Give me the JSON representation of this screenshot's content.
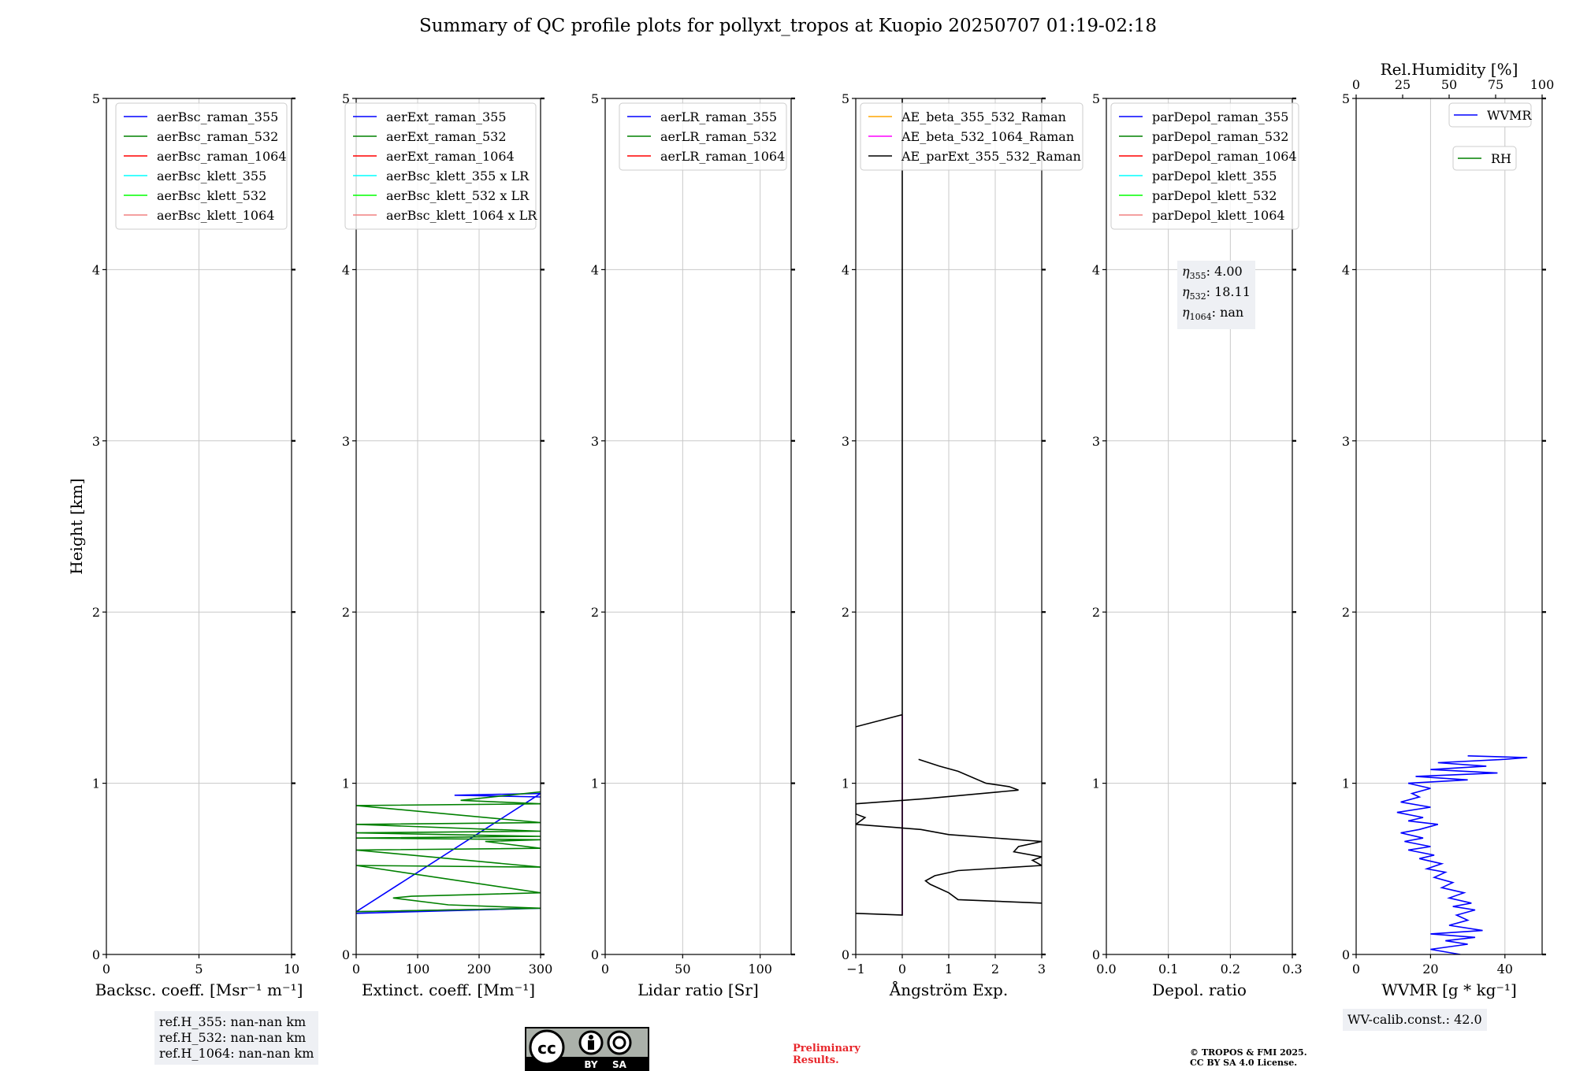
{
  "title": "Summary of QC profile plots for pollyxt_tropos at Kuopio 20250707 01:19-02:18",
  "ref_heights": [
    "ref.H_355: nan-nan km",
    "ref.H_532: nan-nan km",
    "ref.H_1064: nan-nan km"
  ],
  "eta_box": [
    {
      "sym": "η",
      "sub": "355",
      "text": ": 4.00"
    },
    {
      "sym": "η",
      "sub": "532",
      "text": ": 18.11"
    },
    {
      "sym": "η",
      "sub": "1064",
      "text": ": nan"
    }
  ],
  "wv_calib": "WV-calib.const.: 42.0",
  "preliminary": [
    "Preliminary",
    "Results."
  ],
  "copyright": [
    "© TROPOS & FMI 2025.",
    "CC BY SA 4.0 License."
  ],
  "license_badge": {
    "icon": "cc-by-sa-badge",
    "labels": [
      "BY",
      "SA"
    ]
  },
  "colors": {
    "blue": "#0000ff",
    "green": "#008000",
    "red": "#ff0000",
    "cyan": "#00ffff",
    "lime": "#00ff00",
    "pink": "#f08080",
    "orange": "#ffa500",
    "magenta": "#ff00ff",
    "black": "#000000"
  },
  "chart_data": [
    {
      "type": "line",
      "xlabel": "Backsc. coeff. [Msr⁻¹ m⁻¹]",
      "ylabel": "Height [km]",
      "xlim": [
        0,
        10
      ],
      "ylim": [
        0,
        5
      ],
      "xticks": [
        0,
        5,
        10
      ],
      "yticks": [
        0,
        1,
        2,
        3,
        4,
        5
      ],
      "grid": true,
      "legend": "top-right",
      "series": [
        {
          "name": "aerBsc_raman_355",
          "color": "#0000ff",
          "points": []
        },
        {
          "name": "aerBsc_raman_532",
          "color": "#008000",
          "points": []
        },
        {
          "name": "aerBsc_raman_1064",
          "color": "#ff0000",
          "points": []
        },
        {
          "name": "aerBsc_klett_355",
          "color": "#00ffff",
          "points": []
        },
        {
          "name": "aerBsc_klett_532",
          "color": "#00ff00",
          "points": []
        },
        {
          "name": "aerBsc_klett_1064",
          "color": "#f08080",
          "points": []
        }
      ]
    },
    {
      "type": "line",
      "xlabel": "Extinct. coeff. [Mm⁻¹]",
      "ylabel": "",
      "xlim": [
        0,
        300
      ],
      "ylim": [
        0,
        5
      ],
      "xticks": [
        0,
        100,
        200,
        300
      ],
      "yticks": [
        0,
        1,
        2,
        3,
        4,
        5
      ],
      "grid": true,
      "legend": "top-right",
      "series": [
        {
          "name": "aerExt_raman_355",
          "color": "#0000ff",
          "points": [
            [
              0,
              0.24
            ],
            [
              200,
              0.26
            ],
            [
              300,
              0.27
            ],
            [
              0,
              0.25
            ],
            [
              300,
              0.94
            ],
            [
              160,
              0.93
            ],
            [
              300,
              0.92
            ]
          ]
        },
        {
          "name": "aerExt_raman_532",
          "color": "#008000",
          "points": [
            [
              0,
              0.25
            ],
            [
              300,
              0.27
            ],
            [
              150,
              0.29
            ],
            [
              60,
              0.33
            ],
            [
              90,
              0.34
            ],
            [
              300,
              0.36
            ],
            [
              0,
              0.52
            ],
            [
              300,
              0.51
            ],
            [
              0,
              0.61
            ],
            [
              300,
              0.62
            ],
            [
              210,
              0.66
            ],
            [
              300,
              0.67
            ],
            [
              0,
              0.68
            ],
            [
              300,
              0.69
            ],
            [
              0,
              0.71
            ],
            [
              300,
              0.72
            ],
            [
              0,
              0.76
            ],
            [
              300,
              0.77
            ],
            [
              0,
              0.87
            ],
            [
              300,
              0.88
            ],
            [
              170,
              0.9
            ],
            [
              300,
              0.95
            ]
          ]
        },
        {
          "name": "aerExt_raman_1064",
          "color": "#ff0000",
          "points": []
        },
        {
          "name": "aerBsc_klett_355 x LR",
          "color": "#00ffff",
          "points": []
        },
        {
          "name": "aerBsc_klett_532 x LR",
          "color": "#00ff00",
          "points": []
        },
        {
          "name": "aerBsc_klett_1064 x LR",
          "color": "#f08080",
          "points": []
        }
      ]
    },
    {
      "type": "line",
      "xlabel": "Lidar ratio [Sr]",
      "ylabel": "",
      "xlim": [
        0,
        120
      ],
      "ylim": [
        0,
        5
      ],
      "xticks": [
        0,
        50,
        100
      ],
      "yticks": [
        0,
        1,
        2,
        3,
        4,
        5
      ],
      "grid": true,
      "legend": "top-right",
      "series": [
        {
          "name": "aerLR_raman_355",
          "color": "#0000ff",
          "points": []
        },
        {
          "name": "aerLR_raman_532",
          "color": "#008000",
          "points": []
        },
        {
          "name": "aerLR_raman_1064",
          "color": "#ff0000",
          "points": []
        }
      ]
    },
    {
      "type": "line",
      "xlabel": "Ångström Exp.",
      "ylabel": "",
      "xlim": [
        -1,
        3
      ],
      "ylim": [
        0,
        5
      ],
      "xticks": [
        -1,
        0,
        1,
        2,
        3
      ],
      "xticklabels": [
        "−1",
        "0",
        "1",
        "2",
        "3"
      ],
      "yticks": [
        0,
        1,
        2,
        3,
        4,
        5
      ],
      "grid": true,
      "legend": "top-left",
      "series": [
        {
          "name": "AE_beta_355_532_Raman",
          "color": "#ffa500",
          "points": []
        },
        {
          "name": "AE_beta_532_1064_Raman",
          "color": "#ff00ff",
          "points": [
            [
              0,
              0.23
            ],
            [
              0,
              1.4
            ]
          ]
        },
        {
          "name": "AE_parExt_355_532_Raman",
          "color": "#000000",
          "points": [
            [
              -1,
              0.24
            ],
            [
              0,
              0.23
            ],
            [
              0,
              1.4
            ],
            [
              -1,
              1.33
            ],
            [
              0,
              1.4
            ],
            [
              0,
              5
            ]
          ]
        },
        {
          "name": "",
          "color": "#000000",
          "points": [
            [
              3,
              0.3
            ],
            [
              1.2,
              0.32
            ],
            [
              1,
              0.36
            ],
            [
              0.6,
              0.41
            ],
            [
              0.5,
              0.43
            ],
            [
              0.7,
              0.46
            ],
            [
              1.2,
              0.49
            ],
            [
              3,
              0.52
            ],
            [
              2.8,
              0.55
            ],
            [
              3,
              0.57
            ],
            [
              2.4,
              0.6
            ],
            [
              2.5,
              0.63
            ],
            [
              3,
              0.66
            ],
            [
              1,
              0.7
            ],
            [
              0.4,
              0.73
            ],
            [
              -1,
              0.76
            ],
            [
              -0.8,
              0.8
            ],
            [
              -1,
              0.82
            ],
            [
              -1,
              0.88
            ],
            [
              0.5,
              0.91
            ],
            [
              2.5,
              0.96
            ],
            [
              2.3,
              0.98
            ],
            [
              1.8,
              1.0
            ],
            [
              1.2,
              1.07
            ],
            [
              0.8,
              1.1
            ],
            [
              0.35,
              1.14
            ]
          ]
        }
      ]
    },
    {
      "type": "line",
      "xlabel": "Depol. ratio",
      "ylabel": "",
      "xlim": [
        0,
        0.3
      ],
      "ylim": [
        0,
        5
      ],
      "xticks": [
        0,
        0.1,
        0.2,
        0.3
      ],
      "xticklabels": [
        "0.0",
        "0.1",
        "0.2",
        "0.3"
      ],
      "yticks": [
        0,
        1,
        2,
        3,
        4,
        5
      ],
      "grid": true,
      "legend": "top-left",
      "series": [
        {
          "name": "parDepol_raman_355",
          "color": "#0000ff",
          "points": []
        },
        {
          "name": "parDepol_raman_532",
          "color": "#008000",
          "points": []
        },
        {
          "name": "parDepol_raman_1064",
          "color": "#ff0000",
          "points": []
        },
        {
          "name": "parDepol_klett_355",
          "color": "#00ffff",
          "points": []
        },
        {
          "name": "parDepol_klett_532",
          "color": "#00ff00",
          "points": []
        },
        {
          "name": "parDepol_klett_1064",
          "color": "#f08080",
          "points": []
        }
      ]
    },
    {
      "type": "line",
      "xlabel": "WVMR [g * kg⁻¹]",
      "x2label": "Rel.Humidity [%]",
      "ylabel": "",
      "xlim": [
        0,
        50
      ],
      "x2lim": [
        0,
        100
      ],
      "ylim": [
        0,
        5
      ],
      "xticks": [
        0,
        20,
        40
      ],
      "x2ticks": [
        0,
        25,
        50,
        75,
        100
      ],
      "yticks": [
        0,
        1,
        2,
        3,
        4,
        5
      ],
      "grid": true,
      "legend": "top-right",
      "series": [
        {
          "name": "WVMR",
          "color": "#0000ff",
          "points": [
            [
              28,
              0.0
            ],
            [
              20,
              0.03
            ],
            [
              30,
              0.06
            ],
            [
              24,
              0.08
            ],
            [
              32,
              0.1
            ],
            [
              20,
              0.12
            ],
            [
              34,
              0.14
            ],
            [
              25,
              0.17
            ],
            [
              30,
              0.2
            ],
            [
              27,
              0.23
            ],
            [
              32,
              0.26
            ],
            [
              26,
              0.28
            ],
            [
              31,
              0.3
            ],
            [
              25,
              0.33
            ],
            [
              29,
              0.36
            ],
            [
              23,
              0.39
            ],
            [
              26,
              0.42
            ],
            [
              21,
              0.45
            ],
            [
              24,
              0.48
            ],
            [
              19,
              0.5
            ],
            [
              23,
              0.53
            ],
            [
              17,
              0.56
            ],
            [
              21,
              0.58
            ],
            [
              14,
              0.61
            ],
            [
              20,
              0.63
            ],
            [
              13,
              0.66
            ],
            [
              18,
              0.68
            ],
            [
              12,
              0.71
            ],
            [
              17,
              0.73
            ],
            [
              22,
              0.76
            ],
            [
              14,
              0.78
            ],
            [
              18,
              0.8
            ],
            [
              11,
              0.83
            ],
            [
              20,
              0.86
            ],
            [
              12,
              0.89
            ],
            [
              17,
              0.92
            ],
            [
              15,
              0.94
            ],
            [
              20,
              0.97
            ],
            [
              14,
              1.0
            ],
            [
              30,
              1.02
            ],
            [
              16,
              1.04
            ],
            [
              38,
              1.06
            ],
            [
              20,
              1.08
            ],
            [
              35,
              1.1
            ],
            [
              22,
              1.12
            ],
            [
              40,
              1.14
            ],
            [
              46,
              1.15
            ],
            [
              30,
              1.16
            ]
          ]
        },
        {
          "name": "RH",
          "color": "#008000",
          "points": []
        }
      ]
    }
  ]
}
